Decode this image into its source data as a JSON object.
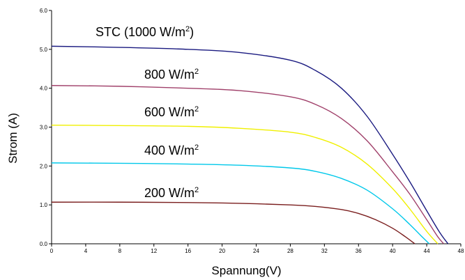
{
  "chart_data": {
    "type": "line",
    "xlabel": "Spannung(V)",
    "ylabel": "Strom (A)",
    "xlim": [
      0,
      48
    ],
    "ylim": [
      0,
      6
    ],
    "x_ticks": [
      "0",
      "4",
      "8",
      "12",
      "16",
      "20",
      "24",
      "28",
      "32",
      "36",
      "40",
      "44",
      "48"
    ],
    "y_ticks": [
      "0.0",
      "1.0",
      "2.0",
      "3.0",
      "4.0",
      "5.0",
      "6.0"
    ],
    "grid": false,
    "legend": "none",
    "series": [
      {
        "name": "STC (1000 W/m2)",
        "label_main": "STC (1000 W/m",
        "label_sup": "2",
        "label_end": ")",
        "color": "#1a1a80",
        "x": [
          0,
          8,
          16,
          22,
          28,
          31,
          34,
          37,
          40,
          42,
          44,
          45.5,
          46.5
        ],
        "y": [
          5.08,
          5.05,
          5.0,
          4.92,
          4.72,
          4.45,
          4.0,
          3.28,
          2.3,
          1.6,
          0.85,
          0.3,
          0.0
        ]
      },
      {
        "name": "800 W/m2",
        "label_main": "800 W/m",
        "label_sup": "2",
        "label_end": "",
        "color": "#a0406a",
        "x": [
          0,
          8,
          16,
          22,
          28,
          31,
          34,
          37,
          40,
          42,
          44,
          45.3,
          46.0
        ],
        "y": [
          4.07,
          4.05,
          4.0,
          3.94,
          3.78,
          3.58,
          3.22,
          2.65,
          1.85,
          1.28,
          0.62,
          0.18,
          0.0
        ]
      },
      {
        "name": "600 W/m2",
        "label_main": "600 W/m",
        "label_sup": "2",
        "label_end": "",
        "color": "#f0f000",
        "x": [
          0,
          8,
          16,
          22,
          28,
          31,
          34,
          37,
          40,
          42,
          44,
          45.3
        ],
        "y": [
          3.05,
          3.04,
          3.02,
          2.97,
          2.87,
          2.73,
          2.48,
          2.05,
          1.42,
          0.9,
          0.32,
          0.0
        ]
      },
      {
        "name": "400 W/m2",
        "label_main": "400 W/m",
        "label_sup": "2",
        "label_end": "",
        "color": "#00c8ea",
        "x": [
          0,
          8,
          16,
          22,
          28,
          31,
          34,
          37,
          40,
          42,
          43.5,
          44.3
        ],
        "y": [
          2.08,
          2.07,
          2.05,
          2.02,
          1.95,
          1.86,
          1.68,
          1.38,
          0.9,
          0.5,
          0.17,
          0.0
        ]
      },
      {
        "name": "200 W/m2",
        "label_main": "200 W/m",
        "label_sup": "2",
        "label_end": "",
        "color": "#7a1e1e",
        "x": [
          0,
          8,
          16,
          22,
          28,
          31,
          34,
          36,
          38,
          40,
          41.5,
          42.6
        ],
        "y": [
          1.07,
          1.07,
          1.06,
          1.04,
          1.0,
          0.96,
          0.88,
          0.78,
          0.62,
          0.4,
          0.18,
          0.0
        ]
      }
    ]
  }
}
